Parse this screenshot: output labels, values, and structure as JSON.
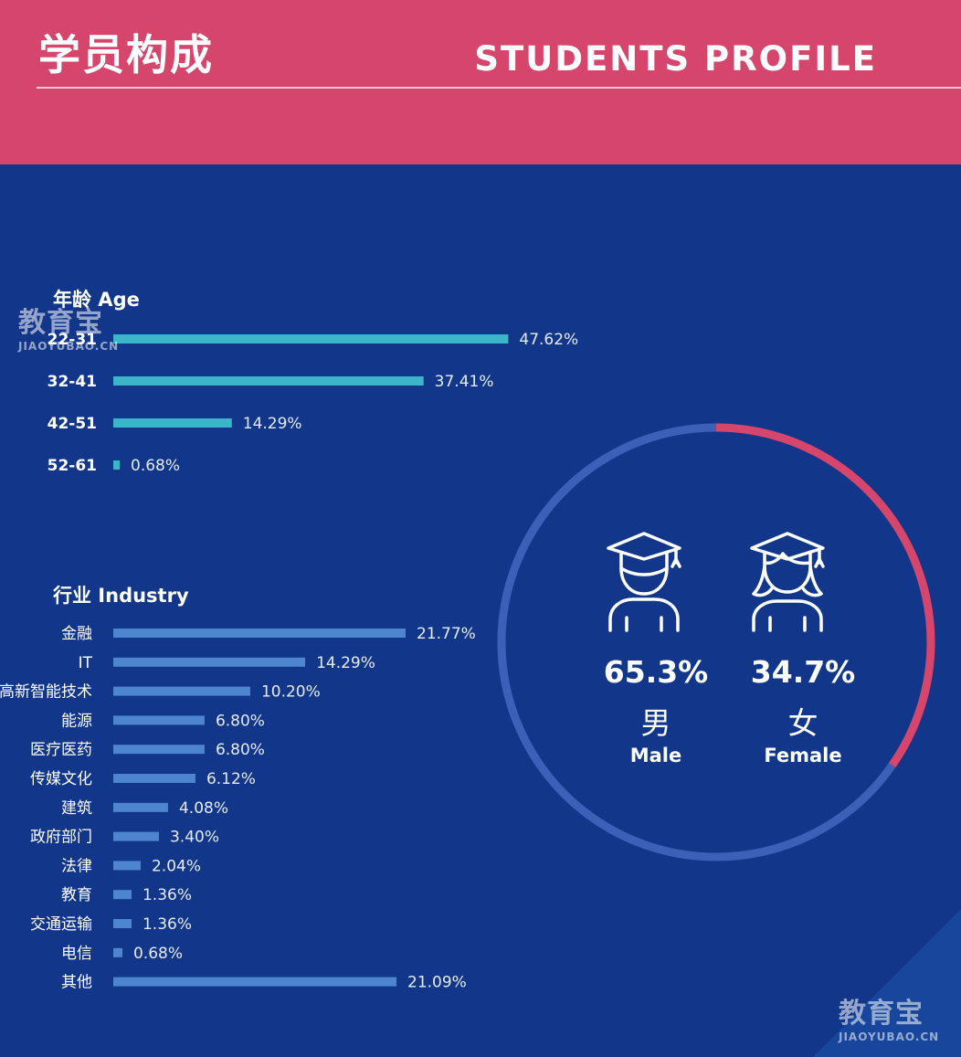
{
  "header": {
    "title_cn": "学员构成",
    "title_en": "STUDENTS PROFILE"
  },
  "age": {
    "title": "年龄 Age"
  },
  "industry": {
    "title": "行业 Industry"
  },
  "gender": {
    "male": {
      "pct": "65.3%",
      "label_cn": "男",
      "label_en": "Male",
      "value": 65.3
    },
    "female": {
      "pct": "34.7%",
      "label_cn": "女",
      "label_en": "Female",
      "value": 34.7
    }
  },
  "watermark": {
    "logo": "教育宝",
    "url": "JIAOYUBAO.CN"
  },
  "colors": {
    "header": "#d6456b",
    "background": "#12378a",
    "age_bar": "#3cb5c9",
    "industry_bar": "#4d86cf",
    "ring_male": "#3c5fb8",
    "ring_female": "#d6456b"
  },
  "chart_data": [
    {
      "type": "bar",
      "orientation": "horizontal",
      "title": "年龄 Age",
      "categories": [
        "22-31",
        "32-41",
        "42-51",
        "52-61"
      ],
      "values": [
        47.62,
        37.41,
        14.29,
        0.68
      ],
      "value_labels": [
        "47.62%",
        "37.41%",
        "14.29%",
        "0.68%"
      ]
    },
    {
      "type": "bar",
      "orientation": "horizontal",
      "title": "行业 Industry",
      "categories": [
        "金融",
        "IT",
        "高新智能技术",
        "能源",
        "医疗医药",
        "传媒文化",
        "建筑",
        "政府部门",
        "法律",
        "教育",
        "交通运输",
        "电信",
        "其他"
      ],
      "values": [
        21.77,
        14.29,
        10.2,
        6.8,
        6.8,
        6.12,
        4.08,
        3.4,
        2.04,
        1.36,
        1.36,
        0.68,
        21.09
      ],
      "value_labels": [
        "21.77%",
        "14.29%",
        "10.20%",
        "6.80%",
        "6.80%",
        "6.12%",
        "4.08%",
        "3.40%",
        "2.04%",
        "1.36%",
        "1.36%",
        "0.68%",
        "21.09%"
      ]
    },
    {
      "type": "pie",
      "style": "donut",
      "categories": [
        "男 Male",
        "女 Female"
      ],
      "values": [
        65.3,
        34.7
      ]
    }
  ]
}
